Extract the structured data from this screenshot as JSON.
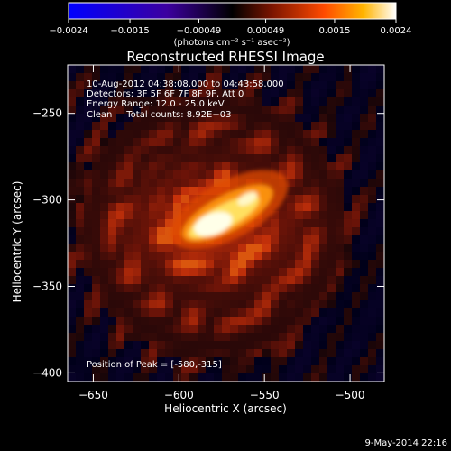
{
  "chart_data": {
    "type": "heatmap",
    "title": "Reconstructed RHESSI Image",
    "xlabel": "Heliocentric X (arcsec)",
    "ylabel": "Heliocentric Y (arcsec)",
    "xlim": [
      -665,
      -480
    ],
    "ylim": [
      -405,
      -222
    ],
    "x_ticks": [
      -650,
      -600,
      -550,
      -500
    ],
    "x_tick_labels": [
      "−650",
      "−600",
      "−550",
      "−500"
    ],
    "y_ticks": [
      -250,
      -300,
      -350,
      -400
    ],
    "y_tick_labels": [
      "−250",
      "−300",
      "−350",
      "−400"
    ],
    "colorbar": {
      "range": [
        -0.0024,
        0.0024
      ],
      "ticks": [
        -0.0024,
        -0.0015,
        -0.00049,
        0.00049,
        0.0015,
        0.0024
      ],
      "tick_labels": [
        "−0.0024",
        "−0.0015",
        "−0.00049",
        "0.00049",
        "0.0015",
        "0.0024"
      ],
      "unit_label": "(photons cm⁻² s⁻¹ asec⁻²)"
    },
    "peak": [
      -580,
      -315
    ],
    "annotations": {
      "time_range": "10-Aug-2012 04:38:08.000 to 04:43:58.000",
      "detectors": "Detectors: 3F 5F 6F 7F 8F 9F, Att 0",
      "energy": "Energy Range: 12.0 - 25.0 keV",
      "clean": "Clean     Total counts: 8.92E+03",
      "peak_label": "Position of Peak = [-580,-315]"
    },
    "grid": false,
    "colormap": [
      "#0000ff",
      "#4b00b5",
      "#000000",
      "#8a1f00",
      "#ff5a00",
      "#ffb000",
      "#ffffff"
    ]
  },
  "footer_date": "9-May-2014 22:16"
}
